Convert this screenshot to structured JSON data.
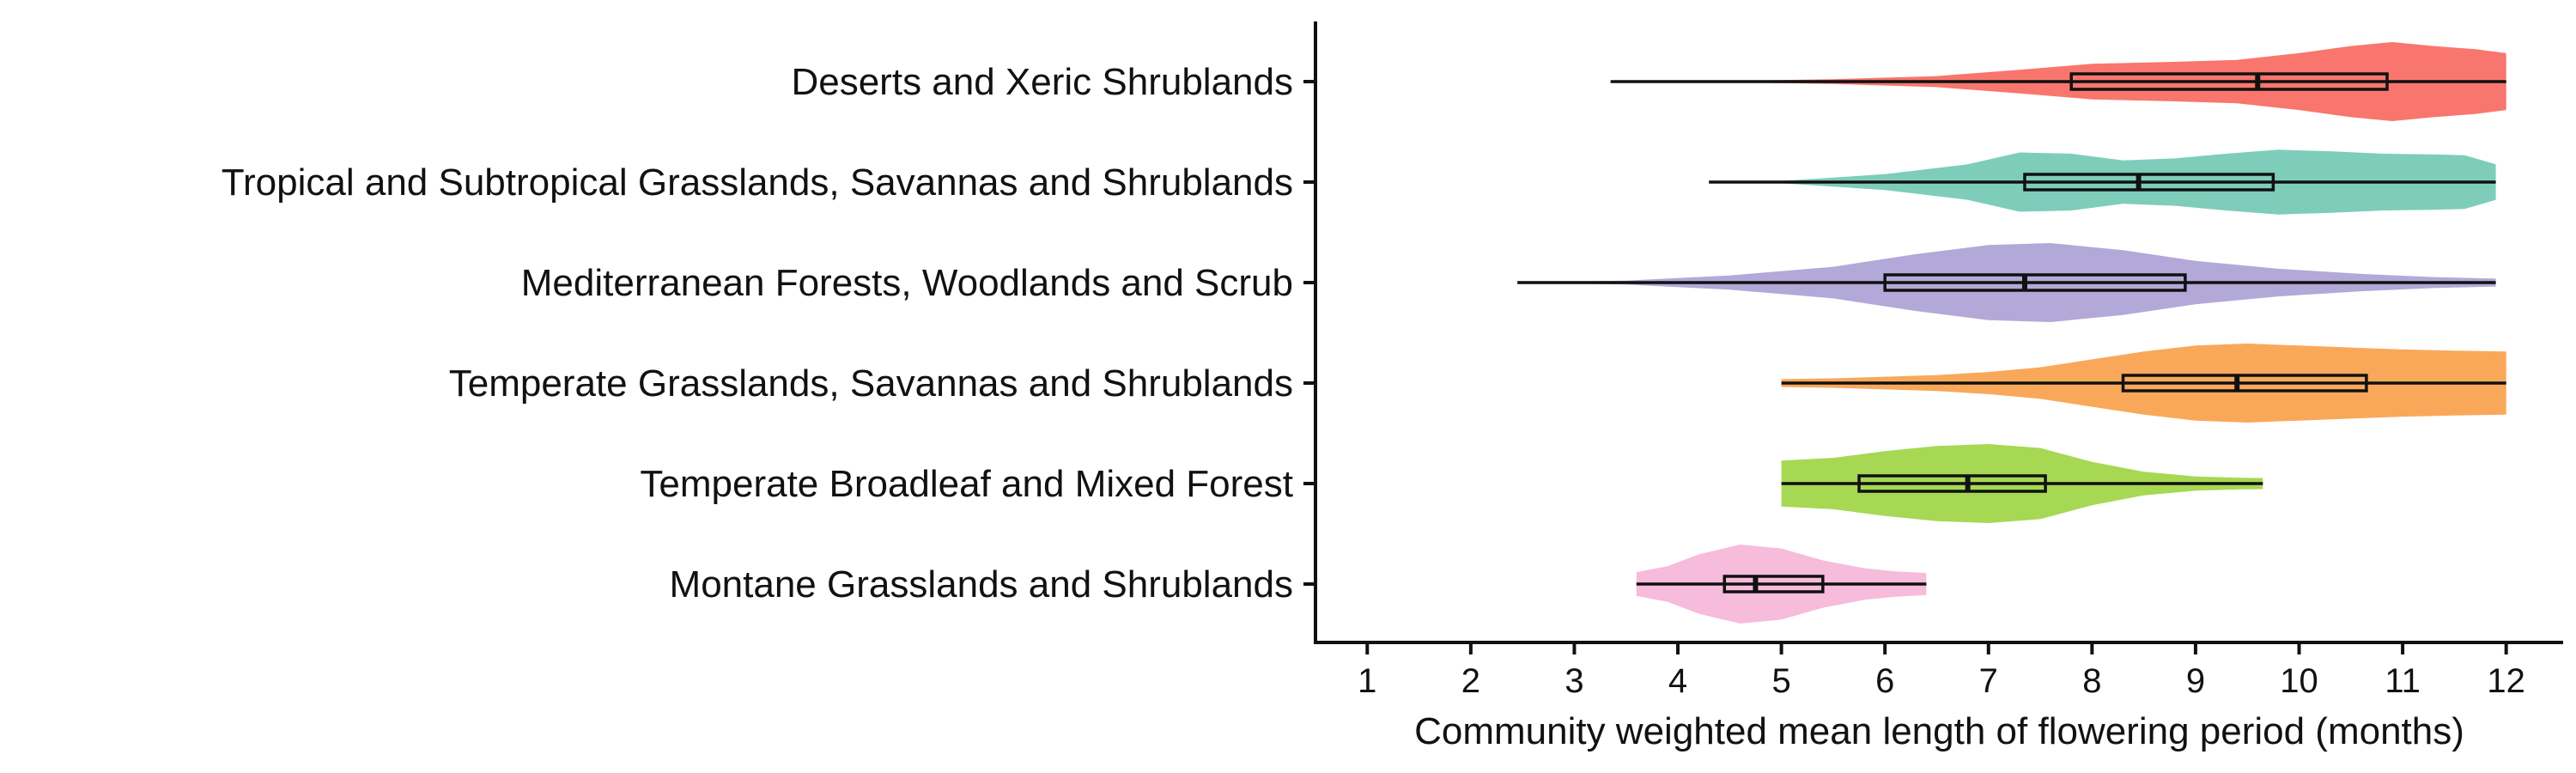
{
  "chart_data": {
    "type": "violin",
    "title": "",
    "xlabel": "Community weighted mean length of flowering period (months)",
    "ylabel": "",
    "xlim": [
      0.5,
      12.55
    ],
    "x_ticks": [
      1,
      2,
      3,
      4,
      5,
      6,
      7,
      8,
      9,
      10,
      11,
      12
    ],
    "grid": false,
    "legend": "none",
    "categories": [
      "Deserts and Xeric Shrublands",
      "Tropical and Subtropical Grasslands, Savannas and Shrublands",
      "Mediterranean Forests, Woodlands and Scrub",
      "Temperate Grasslands, Savannas and Shrublands",
      "Temperate Broadleaf and Mixed Forest",
      "Montane Grasslands and Shrublands"
    ],
    "series": [
      {
        "category": "Deserts and Xeric Shrublands",
        "color": "#f8766d",
        "min": 3.35,
        "q1": 7.8,
        "median": 9.6,
        "q3": 10.85,
        "max": 12.0,
        "density": [
          [
            3.35,
            0.01
          ],
          [
            4.5,
            0.02
          ],
          [
            5.5,
            0.06
          ],
          [
            6.5,
            0.14
          ],
          [
            7.3,
            0.3
          ],
          [
            8.0,
            0.45
          ],
          [
            8.8,
            0.5
          ],
          [
            9.4,
            0.55
          ],
          [
            10.0,
            0.72
          ],
          [
            10.5,
            0.9
          ],
          [
            10.9,
            1.0
          ],
          [
            11.3,
            0.9
          ],
          [
            11.7,
            0.82
          ],
          [
            12.0,
            0.72
          ]
        ]
      },
      {
        "category": "Tropical and Subtropical Grasslands, Savannas and Shrublands",
        "color": "#7ecdbb",
        "min": 4.3,
        "q1": 7.35,
        "median": 8.45,
        "q3": 9.75,
        "max": 11.9,
        "density": [
          [
            4.3,
            0.01
          ],
          [
            5.0,
            0.03
          ],
          [
            6.0,
            0.2
          ],
          [
            6.8,
            0.45
          ],
          [
            7.3,
            0.75
          ],
          [
            7.8,
            0.72
          ],
          [
            8.3,
            0.55
          ],
          [
            8.8,
            0.6
          ],
          [
            9.3,
            0.72
          ],
          [
            9.8,
            0.82
          ],
          [
            10.3,
            0.78
          ],
          [
            10.8,
            0.72
          ],
          [
            11.3,
            0.7
          ],
          [
            11.6,
            0.68
          ],
          [
            11.9,
            0.45
          ]
        ]
      },
      {
        "category": "Mediterranean Forests, Woodlands and Scrub",
        "color": "#b3a9d8",
        "min": 2.45,
        "q1": 6.0,
        "median": 7.35,
        "q3": 8.9,
        "max": 11.9,
        "density": [
          [
            2.45,
            0.01
          ],
          [
            3.5,
            0.05
          ],
          [
            4.5,
            0.18
          ],
          [
            5.5,
            0.4
          ],
          [
            6.3,
            0.72
          ],
          [
            7.0,
            0.95
          ],
          [
            7.6,
            1.0
          ],
          [
            8.3,
            0.82
          ],
          [
            9.0,
            0.55
          ],
          [
            9.8,
            0.35
          ],
          [
            10.6,
            0.22
          ],
          [
            11.3,
            0.14
          ],
          [
            11.9,
            0.1
          ]
        ]
      },
      {
        "category": "Temperate Grasslands, Savannas and Shrublands",
        "color": "#f9a85a",
        "min": 5.0,
        "q1": 8.3,
        "median": 9.4,
        "q3": 10.65,
        "max": 12.0,
        "density": [
          [
            5.0,
            0.1
          ],
          [
            5.5,
            0.12
          ],
          [
            6.0,
            0.16
          ],
          [
            6.5,
            0.2
          ],
          [
            7.0,
            0.28
          ],
          [
            7.5,
            0.4
          ],
          [
            8.0,
            0.6
          ],
          [
            8.5,
            0.8
          ],
          [
            9.0,
            0.95
          ],
          [
            9.5,
            1.0
          ],
          [
            10.0,
            0.95
          ],
          [
            10.5,
            0.9
          ],
          [
            11.0,
            0.85
          ],
          [
            11.5,
            0.82
          ],
          [
            12.0,
            0.8
          ]
        ]
      },
      {
        "category": "Temperate Broadleaf and Mixed Forest",
        "color": "#a6d854",
        "min": 5.0,
        "q1": 5.75,
        "median": 6.8,
        "q3": 7.55,
        "max": 9.65,
        "density": [
          [
            5.0,
            0.58
          ],
          [
            5.5,
            0.65
          ],
          [
            6.0,
            0.82
          ],
          [
            6.5,
            0.95
          ],
          [
            7.0,
            1.0
          ],
          [
            7.5,
            0.9
          ],
          [
            8.0,
            0.55
          ],
          [
            8.5,
            0.3
          ],
          [
            9.0,
            0.18
          ],
          [
            9.4,
            0.15
          ],
          [
            9.65,
            0.14
          ]
        ]
      },
      {
        "category": "Montane Grasslands and Shrublands",
        "color": "#f7bbdc",
        "min": 3.6,
        "q1": 4.45,
        "median": 4.75,
        "q3": 5.4,
        "max": 6.4,
        "density": [
          [
            3.6,
            0.3
          ],
          [
            3.9,
            0.45
          ],
          [
            4.2,
            0.75
          ],
          [
            4.6,
            1.0
          ],
          [
            5.0,
            0.9
          ],
          [
            5.4,
            0.6
          ],
          [
            5.8,
            0.4
          ],
          [
            6.1,
            0.32
          ],
          [
            6.4,
            0.28
          ]
        ]
      }
    ]
  }
}
